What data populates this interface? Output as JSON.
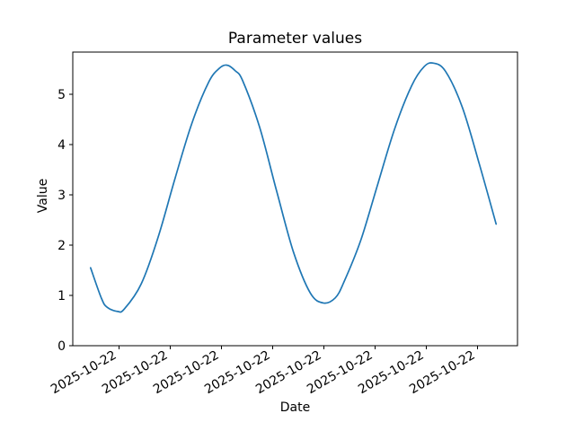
{
  "chart_data": {
    "type": "line",
    "title": "Parameter values",
    "xlabel": "Date",
    "ylabel": "Value",
    "line_color": "#1f77b4",
    "background_color": "#ffffff",
    "grid": false,
    "ylim": [
      0,
      5.84
    ],
    "y_ticks": [
      0,
      1,
      2,
      3,
      4,
      5
    ],
    "x_tick_labels": [
      "2025-10-22",
      "2025-10-22",
      "2025-10-22",
      "2025-10-22",
      "2025-10-22",
      "2025-10-22",
      "2025-10-22",
      "2025-10-22"
    ],
    "x_tick_positions": [
      0.104,
      0.2192,
      0.3344,
      0.4496,
      0.5648,
      0.68,
      0.7952,
      0.9104
    ],
    "x_tick_rotation_deg": 30,
    "series": [
      {
        "name": "Parameter values",
        "points": [
          [
            0.04,
            1.55
          ],
          [
            0.065,
            0.93
          ],
          [
            0.078,
            0.76
          ],
          [
            0.101,
            0.68
          ],
          [
            0.116,
            0.73
          ],
          [
            0.154,
            1.23
          ],
          [
            0.192,
            2.16
          ],
          [
            0.23,
            3.33
          ],
          [
            0.268,
            4.43
          ],
          [
            0.306,
            5.25
          ],
          [
            0.33,
            5.52
          ],
          [
            0.347,
            5.58
          ],
          [
            0.365,
            5.47
          ],
          [
            0.382,
            5.27
          ],
          [
            0.42,
            4.35
          ],
          [
            0.458,
            3.09
          ],
          [
            0.496,
            1.87
          ],
          [
            0.534,
            1.05
          ],
          [
            0.563,
            0.85
          ],
          [
            0.59,
            0.95
          ],
          [
            0.61,
            1.27
          ],
          [
            0.648,
            2.11
          ],
          [
            0.686,
            3.22
          ],
          [
            0.724,
            4.32
          ],
          [
            0.762,
            5.17
          ],
          [
            0.79,
            5.55
          ],
          [
            0.811,
            5.62
          ],
          [
            0.838,
            5.46
          ],
          [
            0.876,
            4.74
          ],
          [
            0.914,
            3.62
          ],
          [
            0.952,
            2.42
          ]
        ]
      }
    ]
  }
}
